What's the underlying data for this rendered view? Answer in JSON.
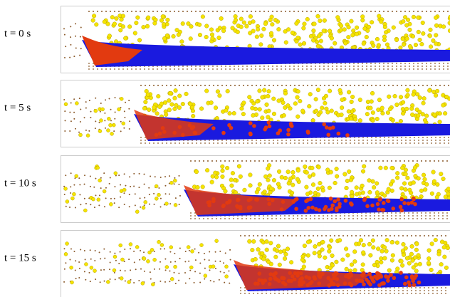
{
  "panels": [
    {
      "label": "t = 0 s"
    },
    {
      "label": "t = 5 s"
    },
    {
      "label": "t = 10 s"
    },
    {
      "label": "t = 15 s"
    }
  ]
}
